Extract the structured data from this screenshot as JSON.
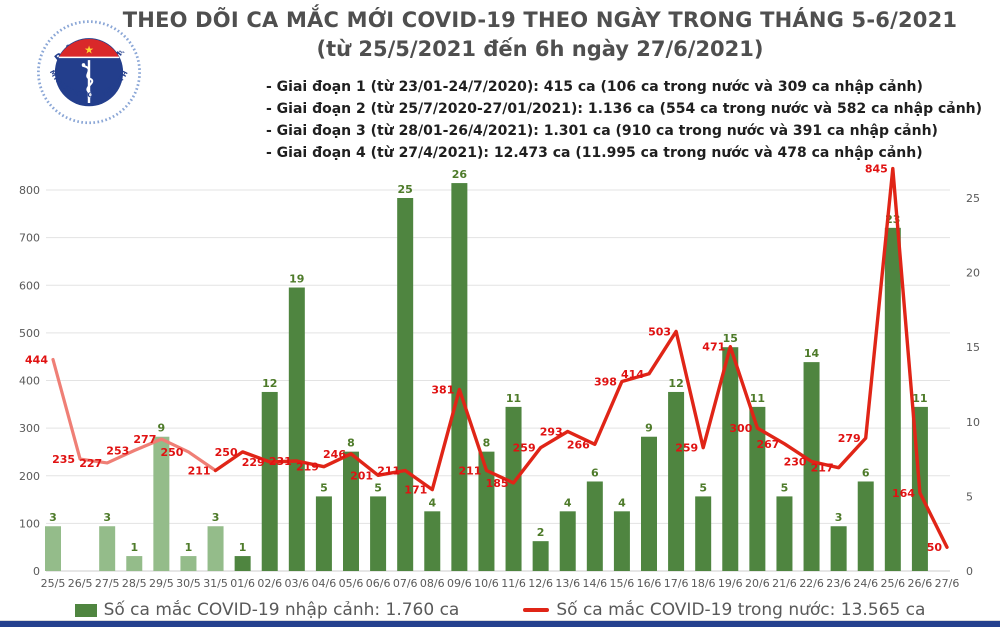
{
  "header": {
    "title": "THEO DÕI CA MẮC MỚI COVID-19 THEO NGÀY TRONG THÁNG 5-6/2021",
    "subtitle": "(từ 25/5/2021 đến 6h ngày 27/6/2021)",
    "bullets": [
      "- Giai đoạn 1 (từ 23/01-24/7/2020): 415 ca (106 ca trong nước và 309 ca nhập cảnh)",
      "- Giai đoạn 2 (từ 25/7/2020-27/01/2021): 1.136 ca (554 ca trong nước và 582 ca nhập cảnh)",
      "- Giai đoạn 3 (từ 28/01-26/4/2021): 1.301 ca (910 ca trong nước và 391 ca nhập cảnh)",
      "- Giai đoạn 4 (từ 27/4/2021): 12.473 ca (11.995 ca trong nước và 478 ca nhập cảnh)"
    ]
  },
  "logo": {
    "text_top": "BỘ Y TẾ",
    "text_bottom": "MINISTRY OF HEALTH",
    "colors": {
      "navy": "#233e8c",
      "red": "#d92междуa",
      "star": "#ffd633"
    }
  },
  "legend": {
    "bar_label": "Số ca mắc COVID-19 nhập cảnh: 1.760 ca",
    "line_label": "Số ca mắc COVID-19 trong nước: 13.565 ca"
  },
  "chart_data": {
    "type": "bar",
    "subtype": "combo-bar-line-dual-axis",
    "title": "",
    "xlabel": "",
    "ylabel_left": "",
    "ylabel_right": "",
    "grid": true,
    "legend_position": "bottom",
    "categories": [
      "25/5",
      "26/5",
      "27/5",
      "28/5",
      "29/5",
      "30/5",
      "31/5",
      "01/6",
      "02/6",
      "03/6",
      "04/6",
      "05/6",
      "06/6",
      "07/6",
      "08/6",
      "09/6",
      "10/6",
      "11/6",
      "12/6",
      "13/6",
      "14/6",
      "15/6",
      "16/6",
      "17/6",
      "18/6",
      "19/6",
      "20/6",
      "21/6",
      "22/6",
      "23/6",
      "24/6",
      "25/6",
      "26/6",
      "27/6"
    ],
    "series": [
      {
        "name": "Số ca mắc COVID-19 nhập cảnh",
        "type": "bar",
        "axis": "right",
        "values": [
          3,
          0,
          3,
          1,
          9,
          1,
          3,
          1,
          12,
          19,
          5,
          8,
          5,
          25,
          4,
          26,
          8,
          11,
          2,
          4,
          6,
          4,
          9,
          12,
          5,
          15,
          11,
          5,
          14,
          3,
          6,
          23,
          11,
          0
        ],
        "color_may": "#94bc8a",
        "color_june": "#4f8540",
        "may_point_count": 7,
        "label_color": "#4e7b2a"
      },
      {
        "name": "Số ca mắc COVID-19 trong nước",
        "type": "line",
        "axis": "left",
        "values": [
          444,
          235,
          227,
          253,
          277,
          250,
          211,
          250,
          229,
          231,
          219,
          246,
          201,
          211,
          171,
          381,
          211,
          185,
          259,
          293,
          266,
          398,
          414,
          503,
          259,
          471,
          300,
          267,
          230,
          217,
          279,
          845,
          164,
          50
        ],
        "color_may": "#ef7f76",
        "color_june": "#e02517",
        "may_point_count": 7,
        "label_color": "#e01212"
      }
    ],
    "left_axis": {
      "ticks": [
        0,
        100,
        200,
        300,
        400,
        500,
        600,
        700,
        800
      ],
      "min": 0,
      "max": 800
    },
    "right_axis": {
      "ticks": [
        0,
        5,
        10,
        15,
        20,
        25
      ],
      "min": 0,
      "max": 25
    }
  }
}
